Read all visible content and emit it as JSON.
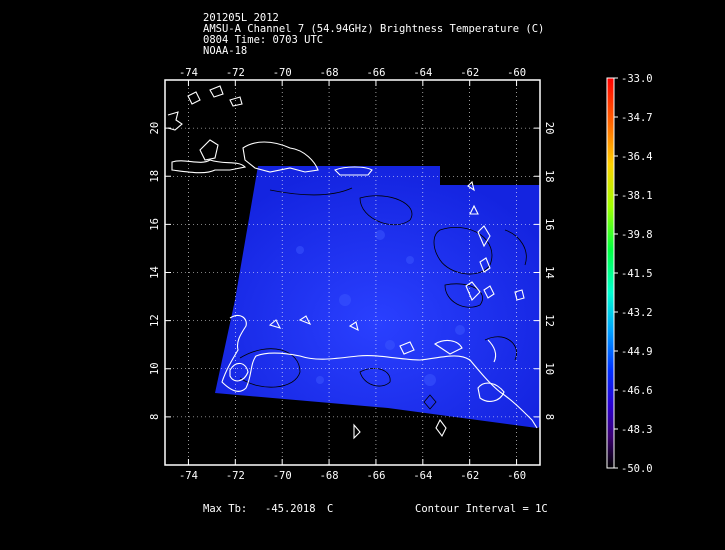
{
  "header": {
    "line1": "201205L 2012",
    "line2": "AMSU-A Channel 7 (54.94GHz) Brightness Temperature (C)",
    "line3": "0804 Time: 0703 UTC",
    "line4": "NOAA-18"
  },
  "map": {
    "lon_range": [
      -75,
      -59
    ],
    "lat_range": [
      6,
      22
    ],
    "lon_ticks": [
      -74,
      -72,
      -70,
      -68,
      -66,
      -64,
      -62,
      -60
    ],
    "lat_ticks": [
      8,
      10,
      12,
      14,
      16,
      18,
      20
    ],
    "lon_tick_labels": [
      "-74",
      "-72",
      "-70",
      "-68",
      "-66",
      "-64",
      "-62",
      "-60"
    ],
    "lat_tick_labels": [
      "8",
      "10",
      "12",
      "14",
      "16",
      "18",
      "20"
    ],
    "swath_color": "#1a2ef2",
    "coast_color": "#ffffff",
    "contour_color": "#000000",
    "grid": true
  },
  "colorbar": {
    "labels": [
      "-33.0",
      "-34.7",
      "-36.4",
      "-38.1",
      "-39.8",
      "-41.5",
      "-43.2",
      "-44.9",
      "-46.6",
      "-48.3",
      "-50.0"
    ]
  },
  "footer": {
    "max_label": "Max Tb:",
    "max_value": "-45.2018",
    "max_unit": "C",
    "contour_label": "Contour Interval = 1C"
  }
}
